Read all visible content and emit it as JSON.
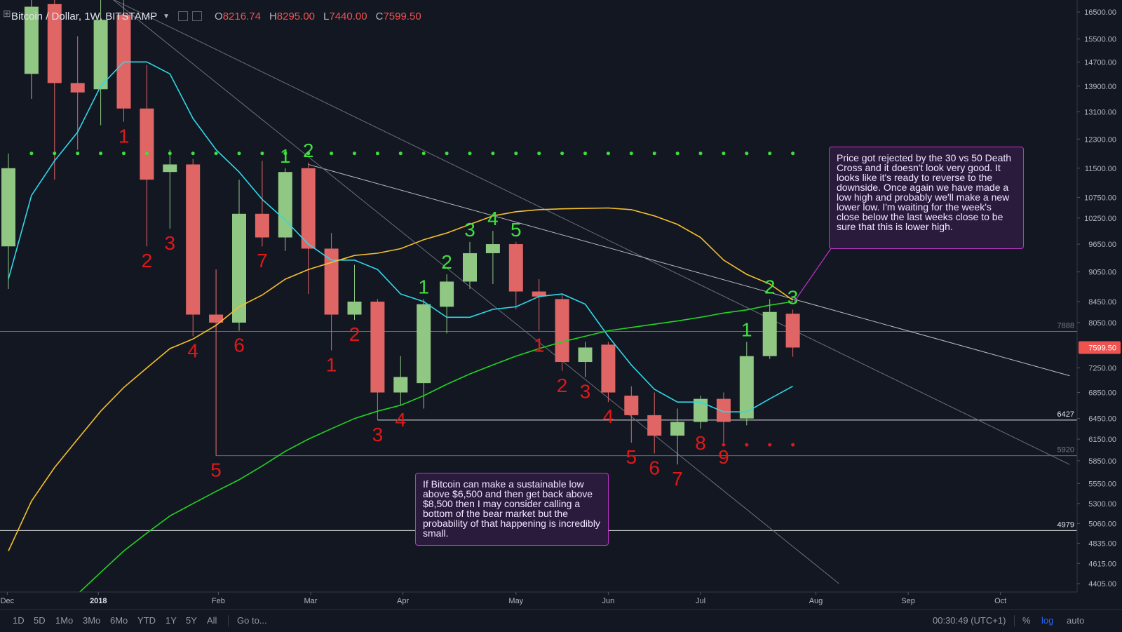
{
  "header": {
    "symbol": "Bitcoin / Dollar, 1W, BITSTAMP",
    "ohlc": [
      {
        "label": "O",
        "value": "8216.74"
      },
      {
        "label": "H",
        "value": "8295.00"
      },
      {
        "label": "L",
        "value": "7440.00"
      },
      {
        "label": "C",
        "value": "7599.50"
      }
    ]
  },
  "toolbar": {
    "timeframes": [
      "1D",
      "5D",
      "1Mo",
      "3Mo",
      "6Mo",
      "YTD",
      "1Y",
      "5Y",
      "All"
    ],
    "goto": "Go to...",
    "clock": "00:30:49 (UTC+1)",
    "percent": "%",
    "log": "log",
    "auto": "auto"
  },
  "notes": {
    "top": "Price got rejected by the 30 vs 50 Death Cross and it doesn't look very good. It looks like it's ready to reverse to the downside. Once again we have made a low high and probably we'll make a new lower low. I'm waiting for the week's close below the last weeks close to be sure that this is lower high.",
    "bottom": "If Bitcoin can make a sustainable low above $6,500 and then get back above $8,500 then I may consider calling a bottom of the bear market but the probability of that happening is incredibly small."
  },
  "colors": {
    "up": "#8fc783",
    "down": "#e06666",
    "ma_fast": "#2fd8e8",
    "ma_mid": "#f5c02c",
    "ma_slow": "#22d422",
    "td_green": "#3ee03e",
    "td_red": "#e01818",
    "price_tag": "#ef5350"
  },
  "chart_data": {
    "type": "candlestick",
    "title": "Bitcoin / Dollar, 1W, BITSTAMP",
    "y_scale": "log",
    "y_ticks": [
      16500,
      15500,
      14700,
      13900,
      13100,
      12300,
      11500,
      10750,
      10250,
      9650,
      9050,
      8450,
      8050,
      7599.5,
      7250,
      6850,
      6450,
      6150,
      5850,
      5550,
      5300,
      5060,
      4835,
      4615,
      4405
    ],
    "y_tick_labels": [
      "16500.00",
      "15500.00",
      "14700.00",
      "13900.00",
      "13100.00",
      "12300.00",
      "11500.00",
      "10750.00",
      "10250.00",
      "9650.00",
      "9050.00",
      "8450.00",
      "8050.00",
      "7599.50",
      "7250.00",
      "6850.00",
      "6450.00",
      "6150.00",
      "5850.00",
      "5550.00",
      "5300.00",
      "5060.00",
      "4835.00",
      "4615.00",
      "4405.00"
    ],
    "x_labels": [
      {
        "label": "Dec",
        "week": -0.05
      },
      {
        "label": "2018",
        "week": 3.9
      },
      {
        "label": "Feb",
        "week": 9.1
      },
      {
        "label": "Mar",
        "week": 13.1
      },
      {
        "label": "Apr",
        "week": 17.1
      },
      {
        "label": "May",
        "week": 22.0
      },
      {
        "label": "Jun",
        "week": 26.0
      },
      {
        "label": "Jul",
        "week": 30.0
      },
      {
        "label": "Aug",
        "week": 35.0
      },
      {
        "label": "Sep",
        "week": 39.0
      },
      {
        "label": "Oct",
        "week": 43.0
      }
    ],
    "candles": [
      {
        "week": 0,
        "o": 9600,
        "h": 11900,
        "l": 8700,
        "c": 11500
      },
      {
        "week": 1,
        "o": 14300,
        "h": 17500,
        "l": 13500,
        "c": 16700
      },
      {
        "week": 2,
        "o": 16800,
        "h": 17200,
        "l": 11200,
        "c": 14000
      },
      {
        "week": 3,
        "o": 14000,
        "h": 15600,
        "l": 12000,
        "c": 13700
      },
      {
        "week": 4,
        "o": 13800,
        "h": 17000,
        "l": 12700,
        "c": 16200
      },
      {
        "week": 5,
        "o": 16400,
        "h": 17200,
        "l": 12800,
        "c": 13200
      },
      {
        "week": 6,
        "o": 13200,
        "h": 14600,
        "l": 9600,
        "c": 11200
      },
      {
        "week": 7,
        "o": 11400,
        "h": 12000,
        "l": 10000,
        "c": 11600
      },
      {
        "week": 8,
        "o": 11600,
        "h": 11750,
        "l": 7800,
        "c": 8200
      },
      {
        "week": 9,
        "o": 8200,
        "h": 9100,
        "l": 5920,
        "c": 8050
      },
      {
        "week": 10,
        "o": 8050,
        "h": 11200,
        "l": 7900,
        "c": 10350
      },
      {
        "week": 11,
        "o": 10350,
        "h": 11700,
        "l": 9600,
        "c": 9800
      },
      {
        "week": 12,
        "o": 9800,
        "h": 11500,
        "l": 9500,
        "c": 11400
      },
      {
        "week": 13,
        "o": 11500,
        "h": 11650,
        "l": 8600,
        "c": 9550
      },
      {
        "week": 14,
        "o": 9550,
        "h": 9900,
        "l": 7550,
        "c": 8200
      },
      {
        "week": 15,
        "o": 8200,
        "h": 9200,
        "l": 8100,
        "c": 8450
      },
      {
        "week": 16,
        "o": 8450,
        "h": 8500,
        "l": 6427,
        "c": 6850
      },
      {
        "week": 17,
        "o": 6850,
        "h": 7450,
        "l": 6650,
        "c": 7100
      },
      {
        "week": 18,
        "o": 7000,
        "h": 8500,
        "l": 6600,
        "c": 8400
      },
      {
        "week": 19,
        "o": 8350,
        "h": 9000,
        "l": 7850,
        "c": 8850
      },
      {
        "week": 20,
        "o": 8850,
        "h": 9700,
        "l": 8700,
        "c": 9450
      },
      {
        "week": 21,
        "o": 9450,
        "h": 9950,
        "l": 8800,
        "c": 9650
      },
      {
        "week": 22,
        "o": 9650,
        "h": 9700,
        "l": 8300,
        "c": 8650
      },
      {
        "week": 23,
        "o": 8650,
        "h": 8900,
        "l": 7900,
        "c": 8550
      },
      {
        "week": 24,
        "o": 8500,
        "h": 8600,
        "l": 7200,
        "c": 7350
      },
      {
        "week": 25,
        "o": 7350,
        "h": 7700,
        "l": 7100,
        "c": 7600
      },
      {
        "week": 26,
        "o": 7650,
        "h": 7700,
        "l": 6700,
        "c": 6850
      },
      {
        "week": 27,
        "o": 6800,
        "h": 6950,
        "l": 6100,
        "c": 6500
      },
      {
        "week": 28,
        "o": 6500,
        "h": 6850,
        "l": 5950,
        "c": 6200
      },
      {
        "week": 29,
        "o": 6200,
        "h": 6600,
        "l": 5800,
        "c": 6400
      },
      {
        "week": 30,
        "o": 6400,
        "h": 6800,
        "l": 6300,
        "c": 6750
      },
      {
        "week": 31,
        "o": 6750,
        "h": 6850,
        "l": 6100,
        "c": 6400
      },
      {
        "week": 32,
        "o": 6450,
        "h": 7700,
        "l": 6350,
        "c": 7450
      },
      {
        "week": 33,
        "o": 7450,
        "h": 8500,
        "l": 7400,
        "c": 8250
      },
      {
        "week": 34,
        "o": 8216.74,
        "h": 8295,
        "l": 7440,
        "c": 7599.5
      }
    ],
    "series": [
      {
        "type": "line",
        "points": [
          [
            0,
            8900
          ],
          [
            1,
            10800
          ],
          [
            2,
            11700
          ],
          [
            3,
            12500
          ],
          [
            4,
            13900
          ],
          [
            5,
            14700
          ],
          [
            6,
            14700
          ],
          [
            7,
            14300
          ],
          [
            8,
            12900
          ],
          [
            9,
            12000
          ],
          [
            10,
            11400
          ],
          [
            11,
            10700
          ],
          [
            12,
            10200
          ],
          [
            13,
            9650
          ],
          [
            14,
            9300
          ],
          [
            15,
            9300
          ],
          [
            16,
            9100
          ],
          [
            17,
            8600
          ],
          [
            18,
            8450
          ],
          [
            19,
            8150
          ],
          [
            20,
            8150
          ],
          [
            21,
            8300
          ],
          [
            22,
            8350
          ],
          [
            23,
            8550
          ],
          [
            24,
            8600
          ],
          [
            25,
            8400
          ],
          [
            26,
            7800
          ],
          [
            27,
            7300
          ],
          [
            28,
            6900
          ],
          [
            29,
            6700
          ],
          [
            30,
            6700
          ],
          [
            31,
            6550
          ],
          [
            32,
            6550
          ],
          [
            33,
            6750
          ],
          [
            34,
            6950
          ]
        ]
      },
      {
        "type": "line",
        "points": [
          [
            0,
            4750
          ],
          [
            1,
            5330
          ],
          [
            2,
            5760
          ],
          [
            3,
            6150
          ],
          [
            4,
            6560
          ],
          [
            5,
            6930
          ],
          [
            6,
            7250
          ],
          [
            7,
            7580
          ],
          [
            8,
            7750
          ],
          [
            9,
            8000
          ],
          [
            10,
            8350
          ],
          [
            11,
            8580
          ],
          [
            12,
            8900
          ],
          [
            13,
            9100
          ],
          [
            14,
            9250
          ],
          [
            15,
            9400
          ],
          [
            16,
            9450
          ],
          [
            17,
            9550
          ],
          [
            18,
            9750
          ],
          [
            19,
            9900
          ],
          [
            20,
            10100
          ],
          [
            21,
            10300
          ],
          [
            22,
            10400
          ],
          [
            23,
            10450
          ],
          [
            24,
            10470
          ],
          [
            25,
            10480
          ],
          [
            26,
            10490
          ],
          [
            27,
            10450
          ],
          [
            28,
            10300
          ],
          [
            29,
            10100
          ],
          [
            30,
            9800
          ],
          [
            31,
            9300
          ],
          [
            32,
            9000
          ],
          [
            33,
            8800
          ],
          [
            34,
            8480
          ]
        ]
      },
      {
        "type": "line",
        "points": [
          [
            3,
            4300
          ],
          [
            4,
            4520
          ],
          [
            5,
            4750
          ],
          [
            6,
            4950
          ],
          [
            7,
            5150
          ],
          [
            8,
            5300
          ],
          [
            9,
            5450
          ],
          [
            10,
            5600
          ],
          [
            11,
            5780
          ],
          [
            12,
            5980
          ],
          [
            13,
            6150
          ],
          [
            14,
            6300
          ],
          [
            15,
            6450
          ],
          [
            16,
            6560
          ],
          [
            17,
            6650
          ],
          [
            18,
            6800
          ],
          [
            19,
            6980
          ],
          [
            20,
            7150
          ],
          [
            21,
            7300
          ],
          [
            22,
            7450
          ],
          [
            23,
            7580
          ],
          [
            24,
            7700
          ],
          [
            25,
            7800
          ],
          [
            26,
            7900
          ],
          [
            27,
            7960
          ],
          [
            28,
            8020
          ],
          [
            29,
            8080
          ],
          [
            30,
            8150
          ],
          [
            31,
            8230
          ],
          [
            32,
            8290
          ],
          [
            33,
            8380
          ],
          [
            34,
            8450
          ]
        ]
      }
    ],
    "horizontal_levels": [
      {
        "value": 7888,
        "label": "7888"
      },
      {
        "value": 6427,
        "label": "6427"
      },
      {
        "value": 5920,
        "label": "5920"
      },
      {
        "value": 4979,
        "label": "4979"
      }
    ],
    "trendlines": [
      {
        "from": [
          4.5,
          17000
        ],
        "to": [
          46,
          5800
        ]
      },
      {
        "from": [
          13,
          11600
        ],
        "to": [
          46,
          7120
        ]
      },
      {
        "from": [
          4.5,
          17000
        ],
        "to": [
          36,
          4405
        ]
      }
    ],
    "td_counts": [
      {
        "week": 5,
        "label": "1",
        "pos": "below",
        "color": "red"
      },
      {
        "week": 6,
        "label": "2",
        "pos": "below",
        "color": "red"
      },
      {
        "week": 7,
        "label": "3",
        "pos": "below",
        "color": "red"
      },
      {
        "week": 8,
        "label": "4",
        "pos": "below",
        "color": "red"
      },
      {
        "week": 9,
        "label": "5",
        "pos": "below",
        "color": "red"
      },
      {
        "week": 10,
        "label": "6",
        "pos": "below",
        "color": "red"
      },
      {
        "week": 11,
        "label": "7",
        "pos": "below",
        "color": "red"
      },
      {
        "week": 12,
        "label": "1",
        "pos": "above",
        "color": "green"
      },
      {
        "week": 13,
        "label": "2",
        "pos": "above",
        "color": "green"
      },
      {
        "week": 14,
        "label": "1",
        "pos": "below",
        "color": "red"
      },
      {
        "week": 15,
        "label": "2",
        "pos": "below",
        "color": "red"
      },
      {
        "week": 16,
        "label": "3",
        "pos": "below",
        "color": "red"
      },
      {
        "week": 17,
        "label": "4",
        "pos": "below",
        "color": "red"
      },
      {
        "week": 18,
        "label": "1",
        "pos": "above",
        "color": "green"
      },
      {
        "week": 19,
        "label": "2",
        "pos": "above",
        "color": "green"
      },
      {
        "week": 20,
        "label": "3",
        "pos": "above",
        "color": "green"
      },
      {
        "week": 21,
        "label": "4",
        "pos": "above",
        "color": "green"
      },
      {
        "week": 22,
        "label": "5",
        "pos": "above",
        "color": "green"
      },
      {
        "week": 23,
        "label": "1",
        "pos": "below",
        "color": "red"
      },
      {
        "week": 24,
        "label": "2",
        "pos": "below",
        "color": "red"
      },
      {
        "week": 25,
        "label": "3",
        "pos": "below",
        "color": "red"
      },
      {
        "week": 26,
        "label": "4",
        "pos": "below",
        "color": "red"
      },
      {
        "week": 27,
        "label": "5",
        "pos": "below",
        "color": "red"
      },
      {
        "week": 28,
        "label": "6",
        "pos": "below",
        "color": "red"
      },
      {
        "week": 29,
        "label": "7",
        "pos": "below",
        "color": "red"
      },
      {
        "week": 30,
        "label": "8",
        "pos": "below",
        "color": "red"
      },
      {
        "week": 31,
        "label": "9",
        "pos": "below",
        "color": "red"
      },
      {
        "week": 32,
        "label": "1",
        "pos": "above",
        "color": "green"
      },
      {
        "week": 33,
        "label": "2",
        "pos": "above",
        "color": "green"
      },
      {
        "week": 34,
        "label": "3",
        "pos": "above",
        "color": "green"
      }
    ],
    "dot_lines": [
      {
        "color": "green",
        "value": 11900,
        "from_week": 1,
        "to_week": 34
      },
      {
        "color": "red",
        "value": 6070,
        "from_week": 31,
        "to_week": 34
      }
    ],
    "price_tag": {
      "value": 7599.5,
      "label": "7599.50"
    }
  }
}
